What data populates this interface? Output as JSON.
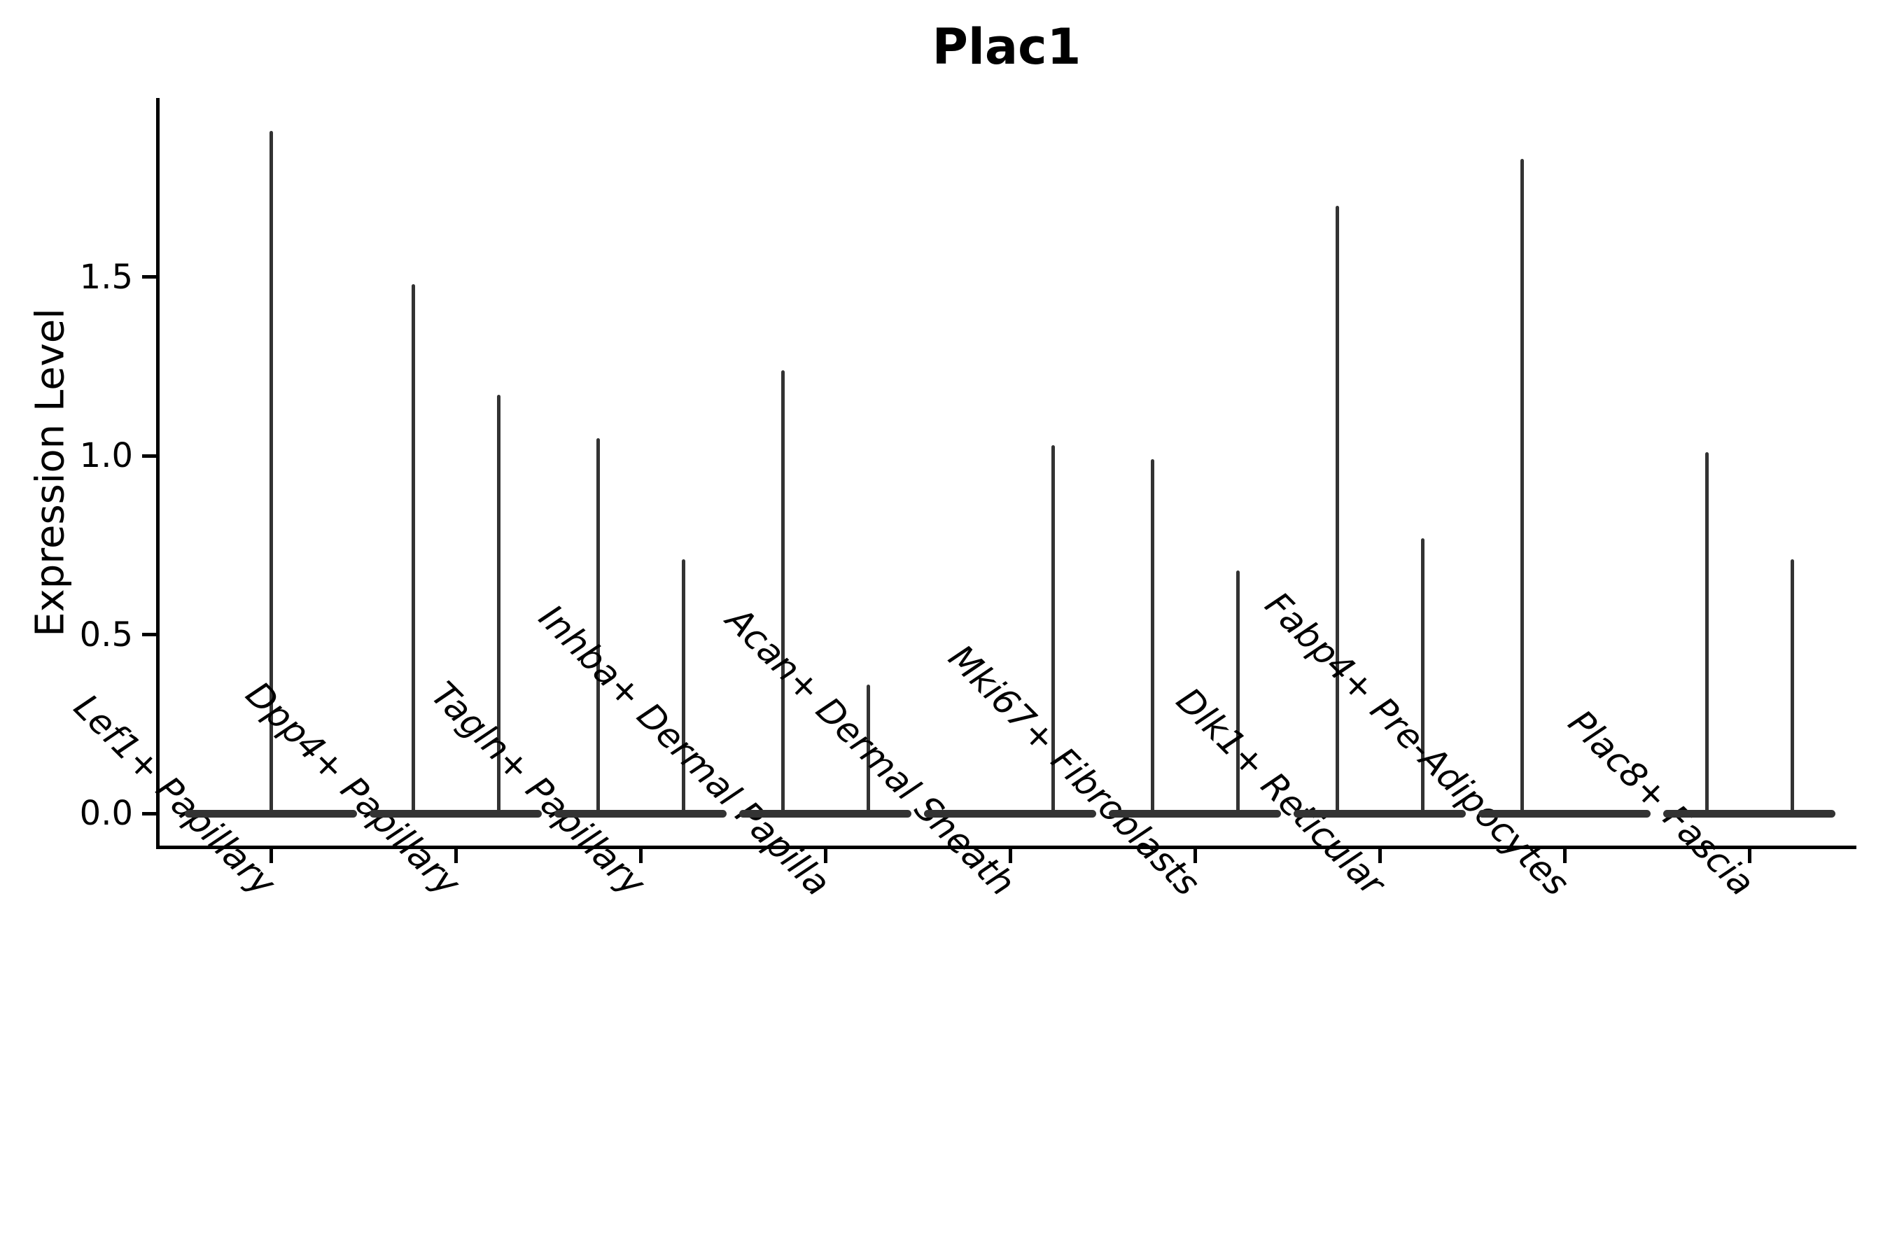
{
  "title": "Plac1",
  "chart_data": {
    "type": "violin",
    "title": "Plac1",
    "xlabel": "",
    "ylabel": "Expression Level",
    "ylim": [
      -0.09,
      2.0
    ],
    "grid": false,
    "legend": "none",
    "baseline_value": 0.0,
    "x_tick_rotation": 45,
    "y_ticks": [
      {
        "label": "0.0",
        "value": 0.0
      },
      {
        "label": "0.5",
        "value": 0.5
      },
      {
        "label": "1.0",
        "value": 1.0
      },
      {
        "label": "1.5",
        "value": 1.5
      }
    ],
    "categories": [
      {
        "label": "Lef1+ Papillary",
        "violins": [
          {
            "position": "center",
            "baseline": 0.0,
            "peak": 1.91
          }
        ]
      },
      {
        "label": "Dpp4+ Papillary",
        "violins": [
          {
            "position": "left",
            "baseline": 0.0,
            "peak": 1.48
          },
          {
            "position": "right",
            "baseline": 0.0,
            "peak": 1.17
          }
        ]
      },
      {
        "label": "Tagln+ Papillary",
        "violins": [
          {
            "position": "left",
            "baseline": 0.0,
            "peak": 1.05
          },
          {
            "position": "right",
            "baseline": 0.0,
            "peak": 0.71
          }
        ]
      },
      {
        "label": "Inhba+ Dermal Papilla",
        "violins": [
          {
            "position": "left",
            "baseline": 0.0,
            "peak": 1.24
          },
          {
            "position": "right",
            "baseline": 0.0,
            "peak": 0.36
          }
        ]
      },
      {
        "label": "Acan+ Dermal Sheath",
        "violins": [
          {
            "position": "right",
            "baseline": 0.0,
            "peak": 1.03
          }
        ]
      },
      {
        "label": "Mki67+ Fibroblasts",
        "violins": [
          {
            "position": "left",
            "baseline": 0.0,
            "peak": 0.99
          },
          {
            "position": "right",
            "baseline": 0.0,
            "peak": 0.68
          }
        ]
      },
      {
        "label": "Dlk1+ Reticular",
        "violins": [
          {
            "position": "left",
            "baseline": 0.0,
            "peak": 1.7
          },
          {
            "position": "right",
            "baseline": 0.0,
            "peak": 0.77
          }
        ]
      },
      {
        "label": "Fabp4+ Pre-Adipocytes",
        "violins": [
          {
            "position": "left",
            "baseline": 0.0,
            "peak": 1.83
          }
        ]
      },
      {
        "label": "Plac8+ Fascia",
        "violins": [
          {
            "position": "left",
            "baseline": 0.0,
            "peak": 1.01
          },
          {
            "position": "right",
            "baseline": 0.0,
            "peak": 0.71
          }
        ]
      }
    ],
    "colors": {
      "violin": "#333333",
      "axis": "#000000",
      "text": "#000000",
      "background": "#ffffff"
    }
  }
}
